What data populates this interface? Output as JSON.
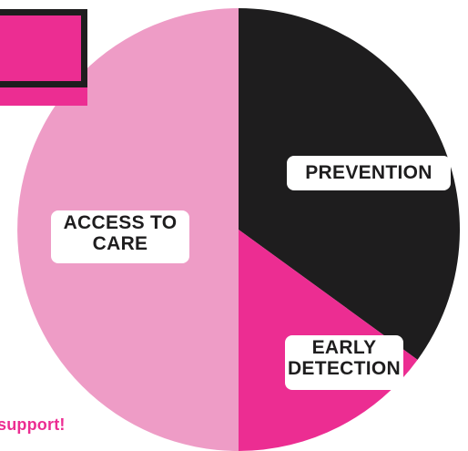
{
  "chart_data": {
    "type": "pie",
    "categories": [
      "PREVENTION",
      "EARLY DETECTION",
      "ACCESS TO CARE"
    ],
    "values": [
      35,
      15,
      50
    ],
    "colors": [
      "#1e1d1e",
      "#ec2d92",
      "#ee9cc6"
    ],
    "start_angle_deg": 0,
    "direction": "clockwise",
    "labels": {
      "prevention": [
        "PREVENTION"
      ],
      "early_detection": [
        "EARLY",
        "DETECTION"
      ],
      "access_to_care": [
        "ACCESS TO",
        "CARE"
      ]
    }
  },
  "footer": {
    "text": "support!"
  },
  "decor": {
    "accent_color": "#ec2d92",
    "border_color": "#1e1d1e"
  }
}
